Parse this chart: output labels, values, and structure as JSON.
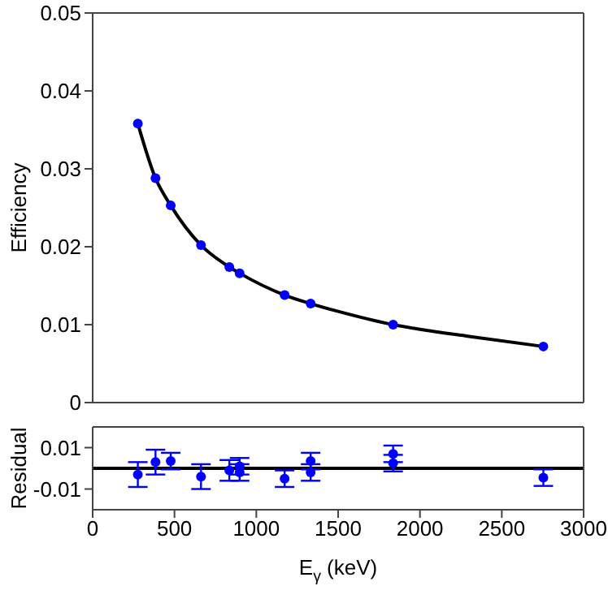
{
  "chart_data": [
    {
      "type": "scatter",
      "ylabel": "Efficiency",
      "xlim": [
        0,
        3000
      ],
      "xticks": [
        0,
        500,
        1000,
        1500,
        2000,
        2500,
        3000
      ],
      "ylim": [
        0,
        0.05
      ],
      "yticks": [
        0,
        0.01,
        0.02,
        0.03,
        0.04,
        0.05
      ],
      "tick_labels": "y",
      "grid": false,
      "series": [
        {
          "color": "#0000ff",
          "marker": "circle",
          "x": [
            276,
            384,
            477,
            662,
            835,
            898,
            1173,
            1332,
            1836,
            2754
          ],
          "values": [
            0.0358,
            0.0288,
            0.0253,
            0.0202,
            0.0174,
            0.0166,
            0.0138,
            0.0127,
            0.01,
            0.0072
          ]
        },
        {
          "type": "line",
          "color": "#000000",
          "x": [
            276,
            384,
            477,
            662,
            835,
            898,
            1173,
            1332,
            1500,
            1836,
            2000,
            2300,
            2754
          ],
          "values": [
            0.0358,
            0.0288,
            0.0253,
            0.0202,
            0.0174,
            0.0166,
            0.0138,
            0.0127,
            0.0117,
            0.01,
            0.0094,
            0.0085,
            0.0072
          ]
        }
      ]
    },
    {
      "type": "scatter",
      "xlabel": "E$_{γ}$ (keV)",
      "ylabel": "Residual",
      "xlim": [
        0,
        3000
      ],
      "xticks": [
        0,
        500,
        1000,
        1500,
        2000,
        2500,
        3000
      ],
      "ylim": [
        -0.02,
        0.02
      ],
      "yticks": [
        -0.01,
        0.01
      ],
      "grid": false,
      "series": [
        {
          "color": "#0000ff",
          "marker": "circle",
          "x": [
            276,
            384,
            477,
            662,
            835,
            898,
            898,
            1173,
            1332,
            1332,
            1836,
            1836,
            2754
          ],
          "values": [
            -0.003,
            0.003,
            0.0035,
            -0.004,
            -0.001,
            0.001,
            -0.002,
            -0.005,
            0.0035,
            -0.002,
            0.007,
            0.0025,
            -0.0045
          ],
          "errors": [
            0.006,
            0.006,
            0.004,
            0.006,
            0.005,
            0.004,
            0.004,
            0.004,
            0.004,
            0.004,
            0.004,
            0.004,
            0.004
          ]
        }
      ],
      "ref_lines": [
        {
          "axis": "y",
          "value": 0,
          "color": "#000000"
        }
      ]
    }
  ]
}
